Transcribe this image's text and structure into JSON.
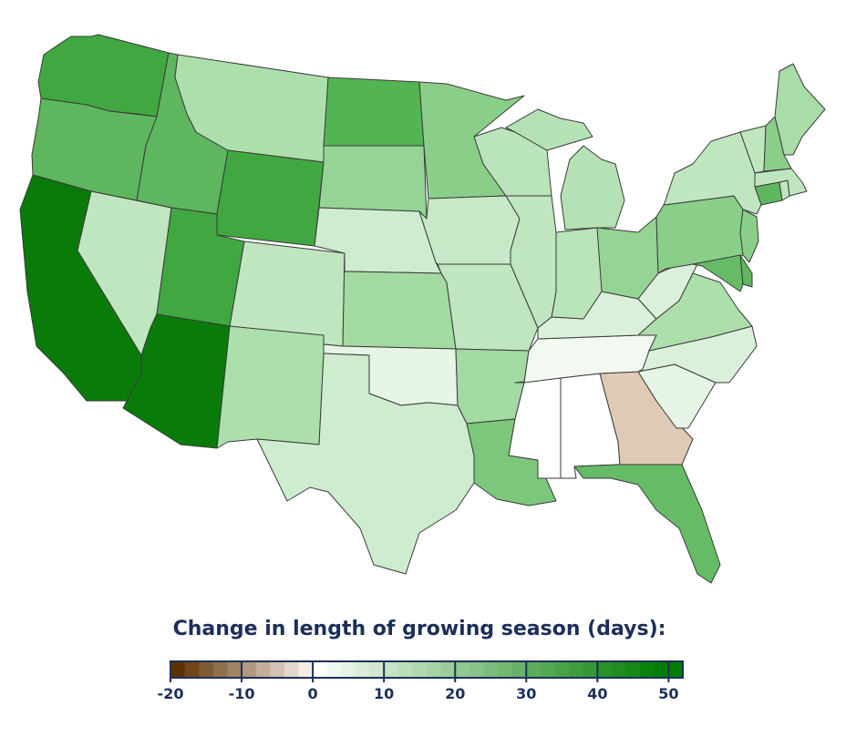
{
  "legend": {
    "title": "Change in length of growing season (days):",
    "min": -20,
    "max": 52,
    "bin_size": 2,
    "ticks": [
      "-20",
      "-10",
      "0",
      "10",
      "20",
      "30",
      "40",
      "50"
    ],
    "colors": {
      "most_negative": "#5e3000",
      "zero": "#ffffff",
      "most_positive": "#007d00"
    }
  },
  "states": [
    {
      "id": "WA",
      "value": 34,
      "fill": "#41a841"
    },
    {
      "id": "OR",
      "value": 28,
      "fill": "#5eb65e"
    },
    {
      "id": "CA",
      "value": 48,
      "fill": "#097b09"
    },
    {
      "id": "NV",
      "value": 12,
      "fill": "#c0e6c0"
    },
    {
      "id": "ID",
      "value": 28,
      "fill": "#5eb65e"
    },
    {
      "id": "MT",
      "value": 14,
      "fill": "#addfad"
    },
    {
      "id": "WY",
      "value": 34,
      "fill": "#41a841"
    },
    {
      "id": "UT",
      "value": 34,
      "fill": "#41a841"
    },
    {
      "id": "AZ",
      "value": 48,
      "fill": "#097b09"
    },
    {
      "id": "CO",
      "value": 12,
      "fill": "#c0e6c0"
    },
    {
      "id": "NM",
      "value": 14,
      "fill": "#addfad"
    },
    {
      "id": "ND",
      "value": 30,
      "fill": "#53b453"
    },
    {
      "id": "SD",
      "value": 18,
      "fill": "#95d495"
    },
    {
      "id": "NE",
      "value": 8,
      "fill": "#ceecce"
    },
    {
      "id": "KS",
      "value": 16,
      "fill": "#a2daa2"
    },
    {
      "id": "OK",
      "value": 4,
      "fill": "#e6f5e6"
    },
    {
      "id": "TX",
      "value": 8,
      "fill": "#ceecce"
    },
    {
      "id": "MN",
      "value": 20,
      "fill": "#89cf89"
    },
    {
      "id": "IA",
      "value": 10,
      "fill": "#c8e9c8"
    },
    {
      "id": "MO",
      "value": 10,
      "fill": "#c0e6c0"
    },
    {
      "id": "AR",
      "value": 16,
      "fill": "#a2daa2"
    },
    {
      "id": "LA",
      "value": 22,
      "fill": "#7cc77c"
    },
    {
      "id": "MS",
      "value": 0,
      "fill": "#ffffff"
    },
    {
      "id": "AL",
      "value": 0,
      "fill": "#ffffff"
    },
    {
      "id": "GA",
      "value": -4,
      "fill": "#dfcab6"
    },
    {
      "id": "FL",
      "value": 26,
      "fill": "#66bb66"
    },
    {
      "id": "SC",
      "value": 4,
      "fill": "#e6f5e6"
    },
    {
      "id": "NC",
      "value": 6,
      "fill": "#daf0da"
    },
    {
      "id": "TN",
      "value": 2,
      "fill": "#f1f9f1"
    },
    {
      "id": "KY",
      "value": 6,
      "fill": "#daf0da"
    },
    {
      "id": "VA",
      "value": 14,
      "fill": "#addfad"
    },
    {
      "id": "WV",
      "value": 6,
      "fill": "#daf0da"
    },
    {
      "id": "OH",
      "value": 18,
      "fill": "#95d495"
    },
    {
      "id": "IN",
      "value": 12,
      "fill": "#bae4ba"
    },
    {
      "id": "IL",
      "value": 10,
      "fill": "#c0e6c0"
    },
    {
      "id": "WI",
      "value": 12,
      "fill": "#bae4ba"
    },
    {
      "id": "MI",
      "value": 12,
      "fill": "#b5e2b5"
    },
    {
      "id": "PA",
      "value": 20,
      "fill": "#89cf89"
    },
    {
      "id": "NY",
      "value": 10,
      "fill": "#c0e6c0"
    },
    {
      "id": "NJ",
      "value": 20,
      "fill": "#89cf89"
    },
    {
      "id": "MD",
      "value": 26,
      "fill": "#66bb66"
    },
    {
      "id": "DE",
      "value": 28,
      "fill": "#5eb65e"
    },
    {
      "id": "CT",
      "value": 28,
      "fill": "#5eb65e"
    },
    {
      "id": "RI",
      "value": 10,
      "fill": "#c0e6c0"
    },
    {
      "id": "MA",
      "value": 10,
      "fill": "#c0e6c0"
    },
    {
      "id": "VT",
      "value": 10,
      "fill": "#c0e6c0"
    },
    {
      "id": "NH",
      "value": 20,
      "fill": "#89cf89"
    },
    {
      "id": "ME",
      "value": 14,
      "fill": "#a8dca8"
    }
  ]
}
